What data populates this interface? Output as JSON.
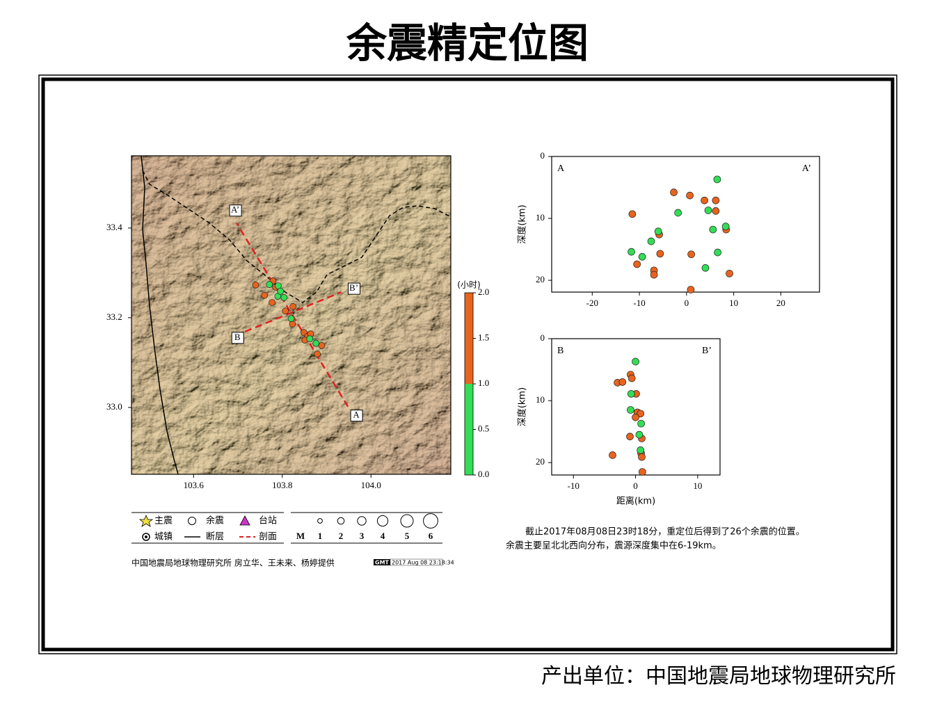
{
  "title": "余震精定位图",
  "footer": "产出单位：中国地震局地球物理研究所",
  "legend": {
    "items": [
      "主震",
      "余震",
      "台站",
      "城镇",
      "断层",
      "剖面"
    ],
    "magnitude_label": "M",
    "magnitudes": [
      1,
      2,
      3,
      4,
      5,
      6
    ]
  },
  "credit": "中国地震局地球物理研究所 房立华、王未来、杨婷提供",
  "stamp": {
    "logo": "GMT",
    "time": "2017 Aug 08 23:18:34"
  },
  "notes": [
    "截止2017年08月08日23时18分，重定位后得到了26个余震的位置。",
    "余震主要呈北北西向分布，震源深度集中在6-19km。"
  ],
  "chart_data": [
    {
      "type": "scatter",
      "xlim": [
        103.46,
        104.18
      ],
      "ylim": [
        32.851,
        33.561
      ],
      "xticks": [
        103.6,
        103.8,
        {
          "value": 104,
          "label": "104.0"
        }
      ],
      "yticks": [
        {
          "value": 33,
          "label": "33.0"
        },
        33.2,
        33.4
      ],
      "series": [
        {
          "color": "#e8641e",
          "x": [
            103.74,
            103.779,
            103.785,
            103.76,
            103.777,
            103.807,
            103.824,
            103.823,
            103.849,
            103.857,
            103.864,
            103.889,
            103.879,
            103.851
          ],
          "values": [
            33.273,
            33.282,
            33.268,
            33.25,
            33.234,
            33.215,
            33.225,
            33.186,
            33.167,
            33.158,
            33.164,
            33.138,
            33.119,
            33.15
          ]
        },
        {
          "color": "#33dd55",
          "x": [
            103.771,
            103.791,
            103.79,
            103.804,
            103.82,
            103.862,
            103.876,
            103.796
          ],
          "values": [
            33.274,
            33.271,
            33.248,
            33.245,
            33.198,
            33.153,
            33.143,
            33.259
          ]
        }
      ],
      "profiles": [
        {
          "labels": [
            "A",
            "A’"
          ],
          "color": "#e02020",
          "x": [
            103.948,
            103.697
          ],
          "y": [
            33.002,
            33.411
          ]
        },
        {
          "labels": [
            "B",
            "B’"
          ],
          "color": "#e02020",
          "x": [
            103.716,
            103.933
          ],
          "y": [
            33.169,
            33.257
          ]
        }
      ],
      "colorbar": {
        "label": "(小时)",
        "lim": [
          0,
          2
        ],
        "ticks": [
          {
            "value": 0,
            "label": "0.0"
          },
          0.5,
          {
            "value": 1,
            "label": "1.0"
          },
          1.5,
          {
            "value": 2,
            "label": "2.0"
          }
        ],
        "bands": [
          {
            "range": [
              0,
              1
            ],
            "color": "#33dd55"
          },
          {
            "range": [
              1,
              2
            ],
            "color": "#e8641e"
          }
        ]
      }
    },
    {
      "type": "scatter",
      "corner_labels": [
        "A",
        "A’"
      ],
      "ylabel": "深度(km)",
      "xlim": [
        -28.6,
        28.2
      ],
      "ylim": [
        0,
        21.9
      ],
      "y_inverted": true,
      "xticks": [
        -20,
        -10,
        0,
        10,
        20
      ],
      "yticks": [
        0,
        10,
        20
      ],
      "series": [
        {
          "color": "#e8641e",
          "x": [
            -2.7,
            0.7,
            3.8,
            6.2,
            6.2,
            -11.5,
            -5.8,
            -5.6,
            1.0,
            8.4,
            -10.5,
            -6.9,
            -6.9,
            9.1,
            0.9
          ],
          "values": [
            5.8,
            6.3,
            7.1,
            7.1,
            8.8,
            9.3,
            12.6,
            15.7,
            15.8,
            11.8,
            17.4,
            18.4,
            19.1,
            18.9,
            21.5
          ]
        },
        {
          "color": "#33dd55",
          "x": [
            6.5,
            4.6,
            -1.8,
            -6.0,
            8.3,
            5.6,
            -7.5,
            -11.7,
            -9.4,
            6.6,
            4.0
          ],
          "values": [
            3.7,
            8.7,
            9.1,
            12.1,
            11.3,
            11.8,
            13.7,
            15.4,
            16.2,
            15.5,
            18.0
          ]
        }
      ]
    },
    {
      "type": "scatter",
      "corner_labels": [
        "B",
        "B’"
      ],
      "ylabel": "深度(km)",
      "xlabel": "距离(km)",
      "xlim": [
        -13.5,
        13.6
      ],
      "ylim": [
        0,
        22
      ],
      "y_inverted": true,
      "xticks": [
        -10,
        0,
        10
      ],
      "yticks": [
        0,
        10,
        20
      ],
      "series": [
        {
          "color": "#e8641e",
          "x": [
            -0.8,
            -0.6,
            -2.9,
            -2.1,
            0.1,
            0.3,
            0.8,
            0,
            -0.9,
            1.0,
            0.9,
            1.0,
            -3.7,
            1.1
          ],
          "values": [
            5.8,
            6.4,
            7.1,
            7.0,
            8.9,
            11.9,
            12.1,
            12.7,
            15.8,
            16.1,
            18.5,
            19.1,
            18.8,
            21.5
          ]
        },
        {
          "color": "#33dd55",
          "x": [
            0,
            -0.7,
            -0.8,
            0.9,
            0.6,
            0.8
          ],
          "values": [
            3.7,
            8.9,
            11.5,
            13.7,
            15.5,
            18.0
          ]
        }
      ]
    }
  ]
}
